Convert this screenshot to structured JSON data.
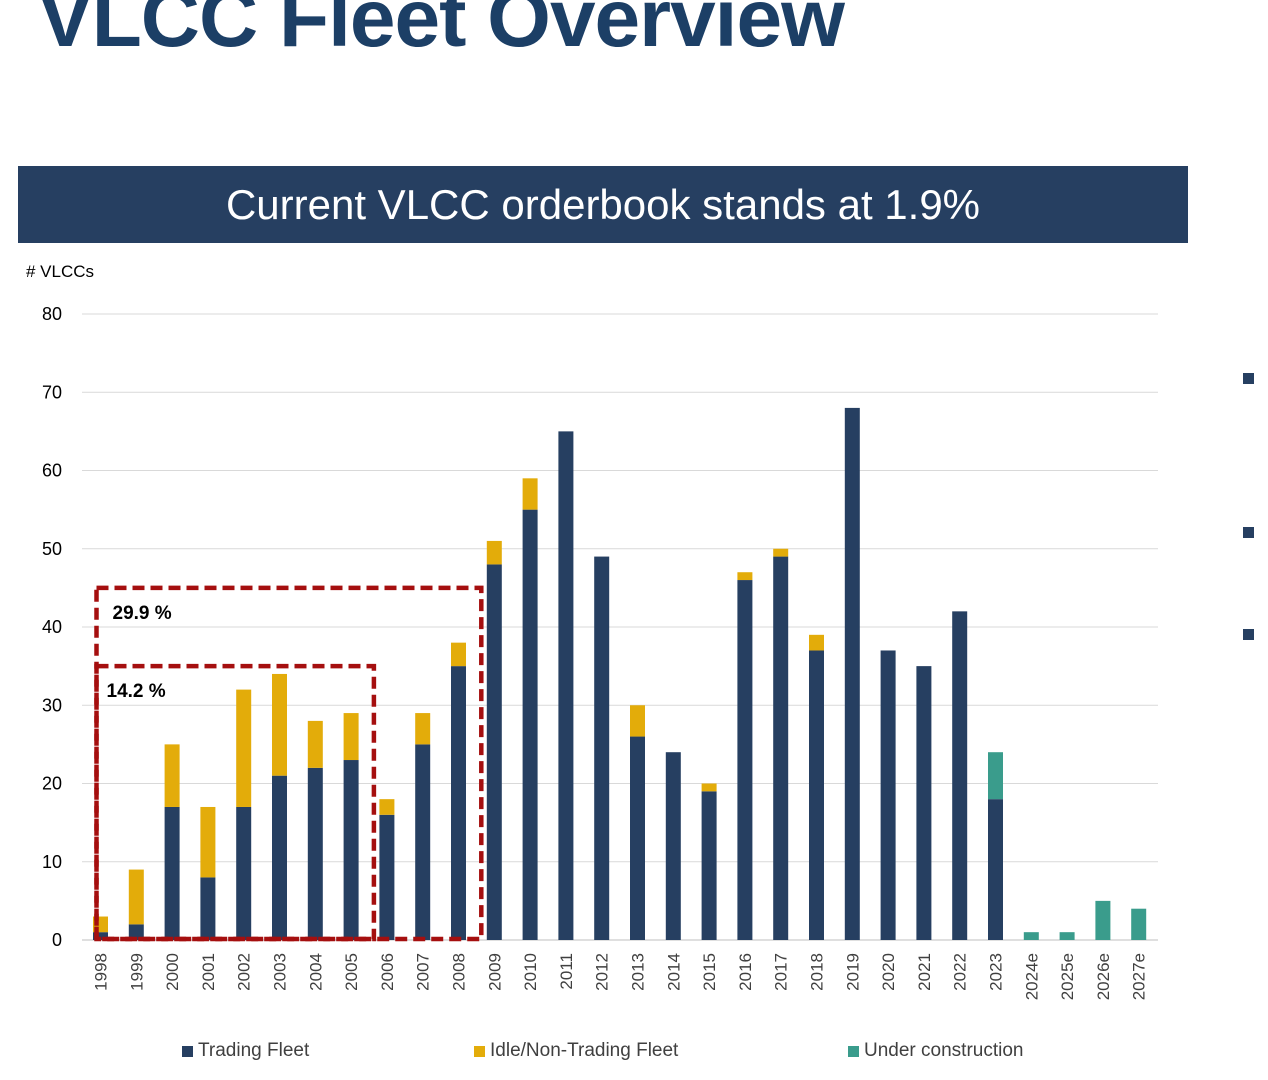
{
  "page": {
    "title": "VLCC Fleet Overview",
    "banner": "Current VLCC orderbook stands at 1.9%"
  },
  "colors": {
    "trading": "#263f61",
    "idle": "#e3ac0a",
    "construction": "#3a9c8c",
    "highlight_box": "#a50f0f",
    "banner": "#263f61",
    "title": "#1c3f66",
    "side_markers": "#263f61"
  },
  "chart_data": {
    "type": "bar",
    "stacked": true,
    "ylabel": "# VLCCs",
    "ylim": [
      0,
      80
    ],
    "yticks": [
      0,
      10,
      20,
      30,
      40,
      50,
      60,
      70,
      80
    ],
    "grid": true,
    "categories": [
      "1998",
      "1999",
      "2000",
      "2001",
      "2002",
      "2003",
      "2004",
      "2005",
      "2006",
      "2007",
      "2008",
      "2009",
      "2010",
      "2011",
      "2012",
      "2013",
      "2014",
      "2015",
      "2016",
      "2017",
      "2018",
      "2019",
      "2020",
      "2021",
      "2022",
      "2023",
      "2024e",
      "2025e",
      "2026e",
      "2027e"
    ],
    "series": [
      {
        "name": "Trading Fleet",
        "color_key": "trading",
        "values": [
          1,
          2,
          17,
          8,
          17,
          21,
          22,
          23,
          16,
          25,
          35,
          48,
          55,
          65,
          49,
          26,
          24,
          19,
          46,
          49,
          37,
          68,
          37,
          35,
          42,
          18,
          0,
          0,
          0,
          0
        ]
      },
      {
        "name": "Idle/Non-Trading Fleet",
        "color_key": "idle",
        "values": [
          2,
          7,
          8,
          9,
          15,
          13,
          6,
          6,
          2,
          4,
          3,
          3,
          4,
          0,
          0,
          4,
          0,
          1,
          1,
          1,
          2,
          0,
          0,
          0,
          0,
          0,
          0,
          0,
          0,
          0
        ]
      },
      {
        "name": "Under construction",
        "color_key": "construction",
        "values": [
          0,
          0,
          0,
          0,
          0,
          0,
          0,
          0,
          0,
          0,
          0,
          0,
          0,
          0,
          0,
          0,
          0,
          0,
          0,
          0,
          0,
          0,
          0,
          0,
          0,
          6,
          1,
          1,
          5,
          4
        ]
      }
    ],
    "legend_position": "bottom",
    "annotations": [
      {
        "label": "29.9 %",
        "from_category": "1998",
        "to_category": "2009",
        "y_top": 45
      },
      {
        "label": "14.2 %",
        "from_category": "1998",
        "to_category": "2006",
        "y_top": 35
      }
    ]
  },
  "side_markers": 3
}
